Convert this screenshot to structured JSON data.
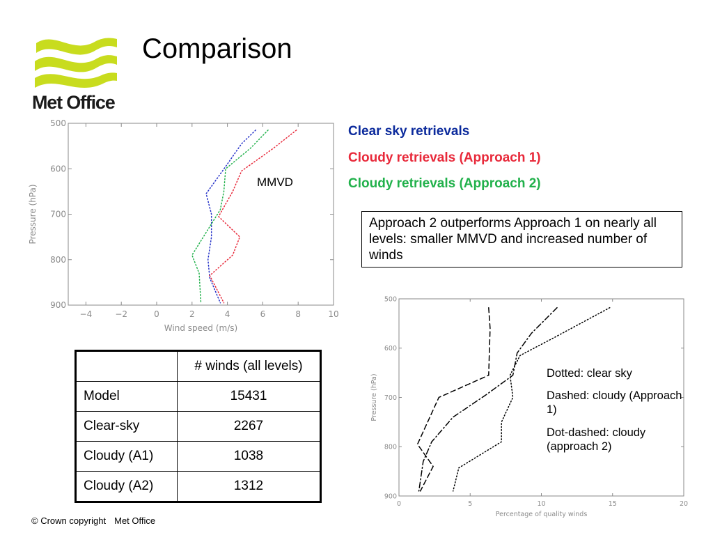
{
  "title": "Comparison",
  "logo": {
    "text": "Met Office"
  },
  "legend": {
    "clear": {
      "label": "Clear sky retrievals",
      "color": "#0b2a9c"
    },
    "cloudy1": {
      "label": "Cloudy retrievals (Approach 1)",
      "color": "#e8293a"
    },
    "cloudy2": {
      "label": "Cloudy retrievals (Approach 2)",
      "color": "#21b14b"
    }
  },
  "mmvd_label": "MMVD",
  "note": "Approach 2 outperforms Approach 1 on nearly all levels: smaller MMVD and increased number of winds",
  "chart2_text": {
    "dotted": "Dotted: clear sky",
    "dashed": "Dashed: cloudy (Approach 1)",
    "dotdashed": "Dot-dashed: cloudy (approach 2)"
  },
  "table": {
    "header": [
      "",
      "# winds (all levels)"
    ],
    "rows": [
      [
        "Model",
        "15431"
      ],
      [
        "Clear-sky",
        "2267"
      ],
      [
        "Cloudy (A1)",
        "1038"
      ],
      [
        "Cloudy (A2)",
        "1312"
      ]
    ]
  },
  "footer": {
    "copyright": "© Crown copyright",
    "org": "Met Office"
  },
  "chart_data": [
    {
      "type": "line",
      "xlabel": "Wind speed (m/s)",
      "ylabel": "Pressure (hPa)",
      "xlim": [
        -5,
        10
      ],
      "ylim": [
        500,
        900
      ],
      "y_inverted": true,
      "xticks": [
        -4,
        -2,
        0,
        2,
        4,
        6,
        8,
        10
      ],
      "yticks": [
        500,
        600,
        700,
        800,
        900
      ],
      "grid": false,
      "series": [
        {
          "name": "Clear sky retrievals",
          "color": "#2431c8",
          "dash": "dotted",
          "points": [
            [
              5.6,
              515
            ],
            [
              4.8,
              545
            ],
            [
              3.9,
              595
            ],
            [
              2.8,
              655
            ],
            [
              3.1,
              700
            ],
            [
              3.1,
              750
            ],
            [
              2.9,
              800
            ],
            [
              3.0,
              840
            ],
            [
              3.6,
              895
            ]
          ]
        },
        {
          "name": "Cloudy retrievals (Approach 1)",
          "color": "#e8293a",
          "dash": "dotted",
          "points": [
            [
              7.9,
              515
            ],
            [
              6.6,
              555
            ],
            [
              4.8,
              605
            ],
            [
              4.3,
              650
            ],
            [
              3.5,
              705
            ],
            [
              4.7,
              750
            ],
            [
              4.3,
              790
            ],
            [
              3.0,
              835
            ],
            [
              3.8,
              895
            ]
          ]
        },
        {
          "name": "Cloudy retrievals (Approach 2)",
          "color": "#21b14b",
          "dash": "dotted",
          "points": [
            [
              6.3,
              515
            ],
            [
              5.3,
              555
            ],
            [
              3.9,
              600
            ],
            [
              3.8,
              650
            ],
            [
              3.6,
              690
            ],
            [
              2.8,
              740
            ],
            [
              2.0,
              790
            ],
            [
              2.4,
              830
            ],
            [
              2.5,
              895
            ]
          ]
        }
      ]
    },
    {
      "type": "line",
      "xlabel": "Percentage of quality winds",
      "ylabel": "Pressure (hPa)",
      "xlim": [
        0,
        20
      ],
      "ylim": [
        500,
        900
      ],
      "y_inverted": true,
      "xticks": [
        0,
        5,
        10,
        15,
        20
      ],
      "yticks": [
        500,
        600,
        700,
        800,
        900
      ],
      "grid": false,
      "series": [
        {
          "name": "Dotted: clear sky",
          "color": "#000000",
          "dash": "dotted",
          "points": [
            [
              14.8,
              518
            ],
            [
              11.0,
              577
            ],
            [
              8.5,
              615
            ],
            [
              7.8,
              655
            ],
            [
              8.0,
              700
            ],
            [
              7.2,
              750
            ],
            [
              7.2,
              790
            ],
            [
              4.2,
              843
            ],
            [
              3.8,
              890
            ]
          ]
        },
        {
          "name": "Dashed: cloudy (Approach 1)",
          "color": "#000000",
          "dash": "dashed",
          "points": [
            [
              6.3,
              518
            ],
            [
              6.4,
              560
            ],
            [
              6.3,
              655
            ],
            [
              2.8,
              700
            ],
            [
              1.3,
              795
            ],
            [
              2.4,
              840
            ],
            [
              1.5,
              890
            ]
          ]
        },
        {
          "name": "Dot-dashed: cloudy (approach 2)",
          "color": "#000000",
          "dash": "dotdash",
          "points": [
            [
              11.1,
              518
            ],
            [
              9.3,
              570
            ],
            [
              8.3,
              610
            ],
            [
              8.0,
              655
            ],
            [
              6.1,
              695
            ],
            [
              3.8,
              740
            ],
            [
              2.3,
              790
            ],
            [
              1.7,
              830
            ],
            [
              1.4,
              890
            ]
          ]
        }
      ]
    }
  ]
}
